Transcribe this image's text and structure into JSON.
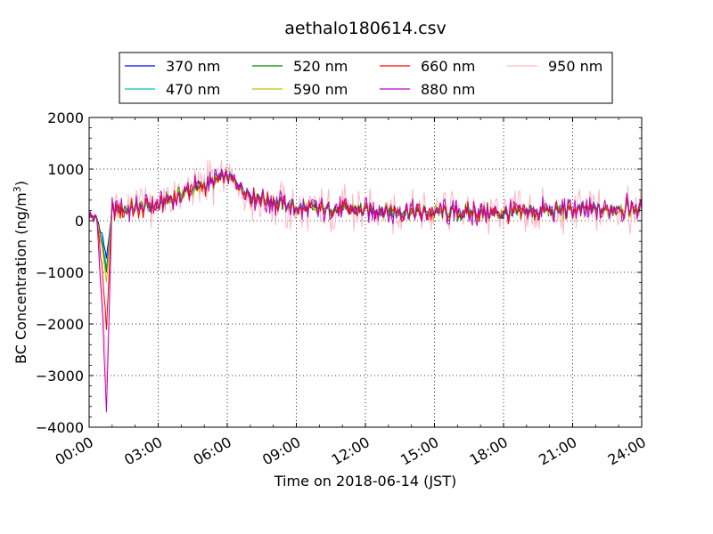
{
  "chart_data": {
    "type": "line",
    "title": "aethalo180614.csv",
    "xlabel": "Time on 2018-06-14 (JST)",
    "ylabel": "BC Concentration (ng/m",
    "ylabel_superscript": "3",
    "ylabel_suffix": ")",
    "xlim": [
      "00:00",
      "24:00"
    ],
    "ylim": [
      -4000,
      2000
    ],
    "x_ticks": [
      "00:00",
      "03:00",
      "06:00",
      "09:00",
      "12:00",
      "15:00",
      "18:00",
      "21:00",
      "24:00"
    ],
    "y_ticks": [
      2000,
      1000,
      0,
      -1000,
      -2000,
      -3000,
      -4000
    ],
    "y_tick_labels": [
      "2000",
      "1000",
      "0",
      "−1000",
      "−2000",
      "−3000",
      "−4000"
    ],
    "grid": true,
    "legend_position": "top",
    "sampling": "approx. one reading every 3 minutes (values estimated from the plot)",
    "series": [
      {
        "name": "370 nm",
        "color": "#0000ff",
        "base": [
          {
            "t": "00:00",
            "v": 100
          },
          {
            "t": "00:20",
            "v": 50
          },
          {
            "t": "00:35",
            "v": -300
          },
          {
            "t": "00:45",
            "v": -700
          },
          {
            "t": "01:00",
            "v": 200
          },
          {
            "t": "01:30",
            "v": 200
          },
          {
            "t": "03:00",
            "v": 300
          },
          {
            "t": "04:00",
            "v": 520
          },
          {
            "t": "05:00",
            "v": 700
          },
          {
            "t": "06:00",
            "v": 900
          },
          {
            "t": "07:00",
            "v": 500
          },
          {
            "t": "09:00",
            "v": 250
          },
          {
            "t": "12:00",
            "v": 200
          },
          {
            "t": "15:00",
            "v": 150
          },
          {
            "t": "18:00",
            "v": 150
          },
          {
            "t": "21:00",
            "v": 200
          },
          {
            "t": "24:00",
            "v": 250
          }
        ],
        "amp": 160
      },
      {
        "name": "470 nm",
        "color": "#00bfbf",
        "base": [
          {
            "t": "00:00",
            "v": 100
          },
          {
            "t": "00:20",
            "v": 50
          },
          {
            "t": "00:35",
            "v": -400
          },
          {
            "t": "00:45",
            "v": -900
          },
          {
            "t": "01:00",
            "v": 200
          },
          {
            "t": "01:30",
            "v": 200
          },
          {
            "t": "03:00",
            "v": 300
          },
          {
            "t": "04:00",
            "v": 520
          },
          {
            "t": "05:00",
            "v": 700
          },
          {
            "t": "06:00",
            "v": 880
          },
          {
            "t": "07:00",
            "v": 500
          },
          {
            "t": "09:00",
            "v": 250
          },
          {
            "t": "12:00",
            "v": 200
          },
          {
            "t": "15:00",
            "v": 150
          },
          {
            "t": "18:00",
            "v": 150
          },
          {
            "t": "21:00",
            "v": 200
          },
          {
            "t": "24:00",
            "v": 250
          }
        ],
        "amp": 170
      },
      {
        "name": "520 nm",
        "color": "#008000",
        "base": [
          {
            "t": "00:00",
            "v": 100
          },
          {
            "t": "00:20",
            "v": 50
          },
          {
            "t": "00:35",
            "v": -500
          },
          {
            "t": "00:45",
            "v": -1000
          },
          {
            "t": "01:00",
            "v": 200
          },
          {
            "t": "01:30",
            "v": 200
          },
          {
            "t": "03:00",
            "v": 300
          },
          {
            "t": "04:00",
            "v": 520
          },
          {
            "t": "05:00",
            "v": 680
          },
          {
            "t": "06:00",
            "v": 860
          },
          {
            "t": "07:00",
            "v": 480
          },
          {
            "t": "09:00",
            "v": 240
          },
          {
            "t": "12:00",
            "v": 200
          },
          {
            "t": "15:00",
            "v": 150
          },
          {
            "t": "18:00",
            "v": 150
          },
          {
            "t": "21:00",
            "v": 200
          },
          {
            "t": "24:00",
            "v": 250
          }
        ],
        "amp": 190
      },
      {
        "name": "590 nm",
        "color": "#bfbf00",
        "base": [
          {
            "t": "00:00",
            "v": 100
          },
          {
            "t": "00:20",
            "v": 50
          },
          {
            "t": "00:35",
            "v": -600
          },
          {
            "t": "00:45",
            "v": -1200
          },
          {
            "t": "01:00",
            "v": 200
          },
          {
            "t": "01:30",
            "v": 200
          },
          {
            "t": "03:00",
            "v": 300
          },
          {
            "t": "04:00",
            "v": 520
          },
          {
            "t": "05:00",
            "v": 680
          },
          {
            "t": "06:00",
            "v": 860
          },
          {
            "t": "07:00",
            "v": 480
          },
          {
            "t": "09:00",
            "v": 240
          },
          {
            "t": "12:00",
            "v": 200
          },
          {
            "t": "15:00",
            "v": 150
          },
          {
            "t": "18:00",
            "v": 150
          },
          {
            "t": "21:00",
            "v": 200
          },
          {
            "t": "24:00",
            "v": 250
          }
        ],
        "amp": 200
      },
      {
        "name": "660 nm",
        "color": "#ff0000",
        "base": [
          {
            "t": "00:00",
            "v": 100
          },
          {
            "t": "00:20",
            "v": 50
          },
          {
            "t": "00:35",
            "v": -1000
          },
          {
            "t": "00:45",
            "v": -2100
          },
          {
            "t": "01:00",
            "v": 200
          },
          {
            "t": "01:30",
            "v": 200
          },
          {
            "t": "03:00",
            "v": 300
          },
          {
            "t": "04:00",
            "v": 520
          },
          {
            "t": "05:00",
            "v": 680
          },
          {
            "t": "06:00",
            "v": 860
          },
          {
            "t": "07:00",
            "v": 480
          },
          {
            "t": "09:00",
            "v": 240
          },
          {
            "t": "12:00",
            "v": 200
          },
          {
            "t": "15:00",
            "v": 150
          },
          {
            "t": "18:00",
            "v": 150
          },
          {
            "t": "21:00",
            "v": 200
          },
          {
            "t": "24:00",
            "v": 250
          }
        ],
        "amp": 230
      },
      {
        "name": "880 nm",
        "color": "#bf00bf",
        "base": [
          {
            "t": "00:00",
            "v": 100
          },
          {
            "t": "00:20",
            "v": 50
          },
          {
            "t": "00:35",
            "v": -1800
          },
          {
            "t": "00:45",
            "v": -3700
          },
          {
            "t": "01:00",
            "v": 200
          },
          {
            "t": "01:30",
            "v": 200
          },
          {
            "t": "03:00",
            "v": 300
          },
          {
            "t": "04:00",
            "v": 540
          },
          {
            "t": "05:00",
            "v": 700
          },
          {
            "t": "06:00",
            "v": 880
          },
          {
            "t": "07:00",
            "v": 480
          },
          {
            "t": "09:00",
            "v": 240
          },
          {
            "t": "12:00",
            "v": 200
          },
          {
            "t": "15:00",
            "v": 150
          },
          {
            "t": "18:00",
            "v": 150
          },
          {
            "t": "21:00",
            "v": 200
          },
          {
            "t": "24:00",
            "v": 250
          }
        ],
        "amp": 300
      },
      {
        "name": "950 nm",
        "color": "#ffb6c1",
        "base": [
          {
            "t": "00:00",
            "v": 100
          },
          {
            "t": "00:20",
            "v": 50
          },
          {
            "t": "00:35",
            "v": -1500
          },
          {
            "t": "00:45",
            "v": -3200
          },
          {
            "t": "01:00",
            "v": 300
          },
          {
            "t": "01:30",
            "v": 250
          },
          {
            "t": "03:00",
            "v": 300
          },
          {
            "t": "04:00",
            "v": 560
          },
          {
            "t": "05:00",
            "v": 700
          },
          {
            "t": "06:00",
            "v": 860
          },
          {
            "t": "07:00",
            "v": 450
          },
          {
            "t": "09:00",
            "v": 220
          },
          {
            "t": "12:00",
            "v": 180
          },
          {
            "t": "15:00",
            "v": 150
          },
          {
            "t": "18:00",
            "v": 140
          },
          {
            "t": "21:00",
            "v": 180
          },
          {
            "t": "24:00",
            "v": 230
          }
        ],
        "amp": 520
      }
    ]
  }
}
